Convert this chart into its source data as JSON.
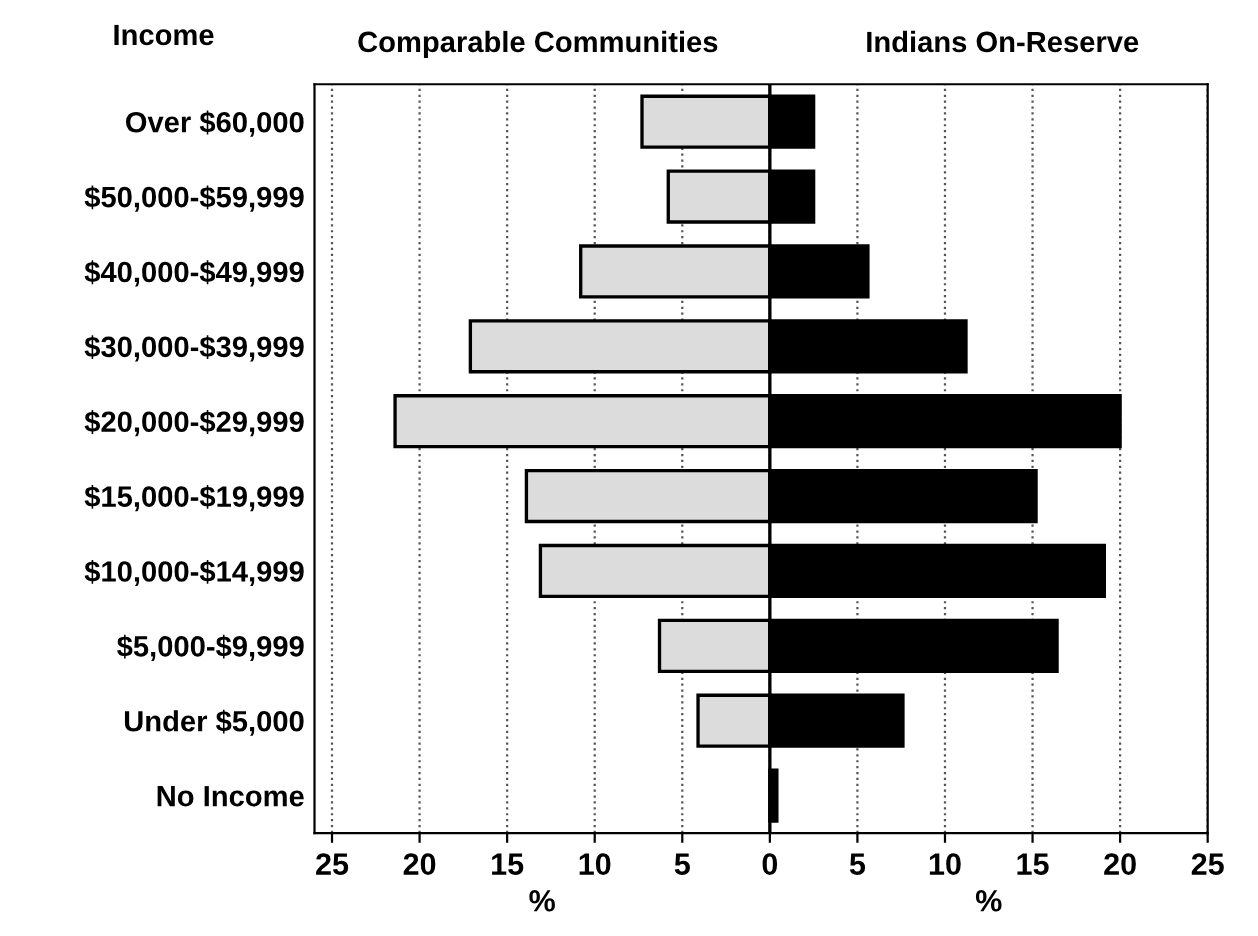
{
  "chart_data": {
    "type": "bar",
    "orientation": "horizontal",
    "stacked": true,
    "ylabel": "Income",
    "xlabel": "%",
    "categories": [
      "Over $60,000",
      "$50,000-$59,999",
      "$40,000-$49,999",
      "$30,000-$39,999",
      "$20,000-$29,999",
      "$15,000-$19,999",
      "$10,000-$14,999",
      "$5,000-$9,999",
      "Under $5,000",
      "No Income"
    ],
    "series": [
      {
        "name": "Comparable Communities",
        "color": "#dcdcdc",
        "values": [
          -7.3,
          -5.8,
          -10.8,
          -17.1,
          -21.4,
          -13.9,
          -13.1,
          -6.3,
          -4.1,
          null
        ]
      },
      {
        "name": "Indians On-Reserve",
        "color": "#000000",
        "values": [
          2.5,
          2.5,
          5.6,
          11.2,
          20.0,
          15.2,
          19.1,
          16.4,
          7.6,
          0.4
        ]
      }
    ],
    "xlim": [
      -26,
      25
    ],
    "xticks": [
      {
        "value": -25,
        "label": "25"
      },
      {
        "value": -20,
        "label": "20"
      },
      {
        "value": -15,
        "label": "15"
      },
      {
        "value": -10,
        "label": "10"
      },
      {
        "value": -5,
        "label": "5"
      },
      0,
      5,
      10,
      15,
      20,
      25
    ],
    "grid": "x",
    "legend": false
  }
}
